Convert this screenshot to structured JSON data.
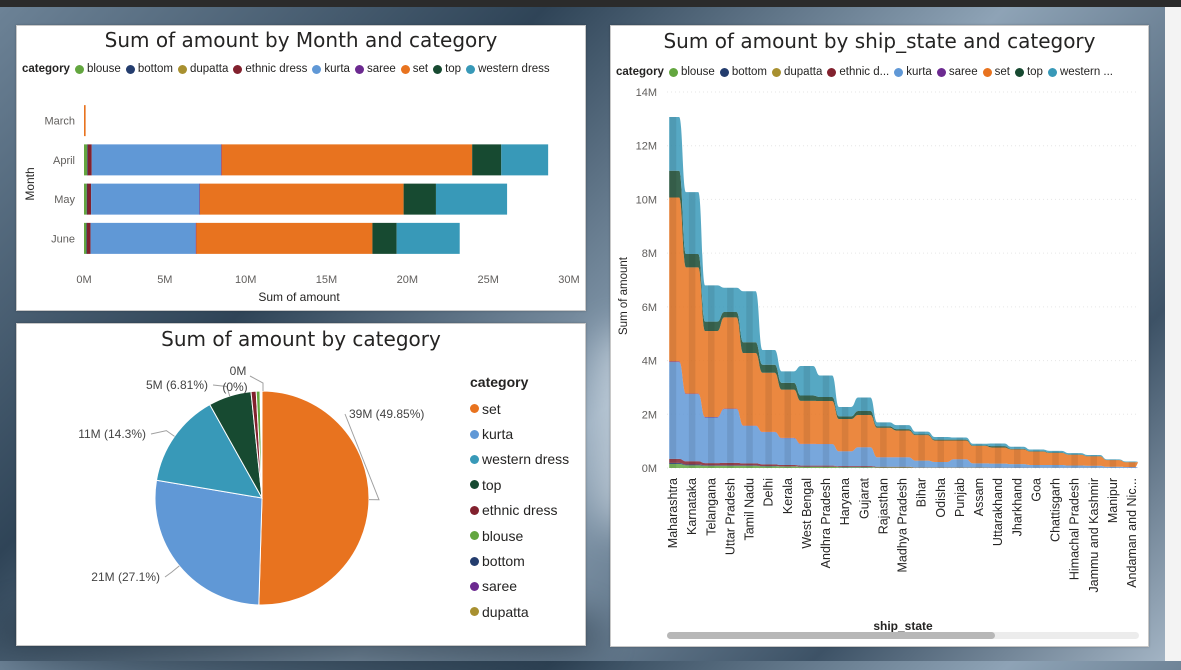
{
  "colors": {
    "blouse": "#63a63f",
    "bottom": "#243d6e",
    "dupatta": "#a89030",
    "ethnic dress": "#82212e",
    "kurta": "#6098d6",
    "saree": "#6c2a90",
    "set": "#e8731f",
    "top": "#174a31",
    "western dress": "#3899b8"
  },
  "chart1": {
    "title": "Sum of amount by Month and category",
    "legend_title": "category",
    "legend": [
      "blouse",
      "bottom",
      "dupatta",
      "ethnic dress",
      "kurta",
      "saree",
      "set",
      "top",
      "western dress"
    ],
    "xlabel": "Sum of amount",
    "ylabel": "Month"
  },
  "chart2": {
    "title": "Sum of amount by category",
    "legend_title": "category",
    "legend": [
      "set",
      "kurta",
      "western dress",
      "top",
      "ethnic dress",
      "blouse",
      "bottom",
      "saree",
      "dupatta"
    ]
  },
  "chart3": {
    "title": "Sum of amount by ship_state and category",
    "legend_title": "category",
    "legend": [
      "blouse",
      "bottom",
      "dupatta",
      "ethnic d...",
      "kurta",
      "saree",
      "set",
      "top",
      "western ..."
    ],
    "xlabel": "ship_state",
    "ylabel": "Sum of amount"
  },
  "chart_data": [
    {
      "type": "bar",
      "orientation": "horizontal",
      "stacked": true,
      "title": "Sum of amount by Month and category",
      "xlabel": "Sum of amount",
      "ylabel": "Month",
      "categories": [
        "March",
        "April",
        "May",
        "June"
      ],
      "xlim": [
        0,
        30000000
      ],
      "xticks": [
        "0M",
        "5M",
        "10M",
        "15M",
        "20M",
        "25M",
        "30M"
      ],
      "series": [
        {
          "name": "blouse",
          "values": [
            0,
            200000,
            170000,
            150000
          ]
        },
        {
          "name": "bottom",
          "values": [
            0,
            30000,
            30000,
            30000
          ]
        },
        {
          "name": "dupatta",
          "values": [
            0,
            0,
            0,
            0
          ]
        },
        {
          "name": "ethnic dress",
          "values": [
            0,
            250000,
            240000,
            230000
          ]
        },
        {
          "name": "kurta",
          "values": [
            0,
            8000000,
            6700000,
            6500000
          ]
        },
        {
          "name": "saree",
          "values": [
            0,
            30000,
            30000,
            30000
          ]
        },
        {
          "name": "set",
          "values": [
            100000,
            15500000,
            12600000,
            10900000
          ]
        },
        {
          "name": "top",
          "values": [
            0,
            1800000,
            2000000,
            1500000
          ]
        },
        {
          "name": "western dress",
          "values": [
            0,
            2900000,
            4400000,
            3900000
          ]
        }
      ]
    },
    {
      "type": "pie",
      "title": "Sum of amount by category",
      "slices": [
        {
          "name": "set",
          "value": 39,
          "label": "39M (49.85%)"
        },
        {
          "name": "kurta",
          "value": 21,
          "label": "21M (27.1%)"
        },
        {
          "name": "western dress",
          "value": 11,
          "label": "11M (14.3%)"
        },
        {
          "name": "top",
          "value": 5,
          "label": "5M (6.81%)"
        },
        {
          "name": "ethnic dress",
          "value": 0.6,
          "label": ""
        },
        {
          "name": "blouse",
          "value": 0.45,
          "label": ""
        },
        {
          "name": "bottom",
          "value": 0.12,
          "label": ""
        },
        {
          "name": "saree",
          "value": 0.1,
          "label": ""
        },
        {
          "name": "dupatta",
          "value": 0.0,
          "label": "0M\n(0%)"
        }
      ]
    },
    {
      "type": "area",
      "stacked": true,
      "title": "Sum of amount by ship_state and category",
      "xlabel": "ship_state",
      "ylabel": "Sum of amount",
      "ylim": [
        0,
        14000000
      ],
      "yticks": [
        "0M",
        "2M",
        "4M",
        "6M",
        "8M",
        "10M",
        "12M",
        "14M"
      ],
      "categories": [
        "Maharashtra",
        "Karnataka",
        "Telangana",
        "Uttar Pradesh",
        "Tamil Nadu",
        "Delhi",
        "Kerala",
        "West Bengal",
        "Andhra Pradesh",
        "Haryana",
        "Gujarat",
        "Rajasthan",
        "Madhya Pradesh",
        "Bihar",
        "Odisha",
        "Punjab",
        "Assam",
        "Uttarakhand",
        "Jharkhand",
        "Goa",
        "Chattisgarh",
        "Himachal Pradesh",
        "Jammu and Kashmir",
        "Manipur",
        "Andaman and Nic..."
      ],
      "series": [
        {
          "name": "blouse",
          "values": [
            150000,
            100000,
            80000,
            80000,
            80000,
            60000,
            50000,
            40000,
            40000,
            30000,
            30000,
            20000,
            20000,
            10000,
            10000,
            10000,
            10000,
            5000,
            5000,
            5000,
            5000,
            5000,
            5000,
            2000,
            2000
          ]
        },
        {
          "name": "bottom",
          "values": [
            40000,
            30000,
            20000,
            20000,
            20000,
            15000,
            10000,
            10000,
            10000,
            8000,
            8000,
            5000,
            5000,
            3000,
            3000,
            3000,
            2000,
            2000,
            2000,
            1000,
            1000,
            1000,
            1000,
            500,
            500
          ]
        },
        {
          "name": "dupatta",
          "values": [
            0,
            0,
            0,
            0,
            0,
            0,
            0,
            0,
            0,
            0,
            0,
            0,
            0,
            0,
            0,
            0,
            0,
            0,
            0,
            0,
            0,
            0,
            0,
            0,
            0
          ]
        },
        {
          "name": "ethnic dress",
          "values": [
            150000,
            120000,
            80000,
            90000,
            70000,
            60000,
            50000,
            40000,
            40000,
            30000,
            30000,
            20000,
            20000,
            10000,
            10000,
            10000,
            10000,
            5000,
            5000,
            5000,
            5000,
            5000,
            5000,
            2000,
            2000
          ]
        },
        {
          "name": "kurta",
          "values": [
            3600000,
            2500000,
            1700000,
            2000000,
            1400000,
            1200000,
            1000000,
            800000,
            800000,
            550000,
            700000,
            350000,
            350000,
            250000,
            200000,
            300000,
            150000,
            150000,
            130000,
            100000,
            100000,
            80000,
            70000,
            40000,
            30000
          ]
        },
        {
          "name": "saree",
          "values": [
            30000,
            20000,
            20000,
            20000,
            10000,
            10000,
            10000,
            10000,
            5000,
            5000,
            5000,
            3000,
            3000,
            2000,
            2000,
            2000,
            1000,
            1000,
            1000,
            1000,
            1000,
            1000,
            1000,
            500,
            500
          ]
        },
        {
          "name": "set",
          "values": [
            6100000,
            4700000,
            3200000,
            3400000,
            2700000,
            2200000,
            1800000,
            1600000,
            1600000,
            1200000,
            1200000,
            1100000,
            1000000,
            950000,
            800000,
            700000,
            650000,
            600000,
            550000,
            500000,
            450000,
            400000,
            350000,
            250000,
            180000
          ]
        },
        {
          "name": "top",
          "values": [
            1000000,
            500000,
            350000,
            200000,
            400000,
            300000,
            250000,
            200000,
            150000,
            100000,
            150000,
            50000,
            50000,
            30000,
            30000,
            30000,
            20000,
            50000,
            20000,
            15000,
            15000,
            10000,
            10000,
            5000,
            5000
          ]
        },
        {
          "name": "western dress",
          "values": [
            2000000,
            2300000,
            1350000,
            900000,
            1900000,
            550000,
            430000,
            1100000,
            800000,
            350000,
            500000,
            150000,
            150000,
            100000,
            100000,
            80000,
            60000,
            100000,
            80000,
            60000,
            60000,
            50000,
            40000,
            20000,
            20000
          ]
        }
      ]
    }
  ]
}
